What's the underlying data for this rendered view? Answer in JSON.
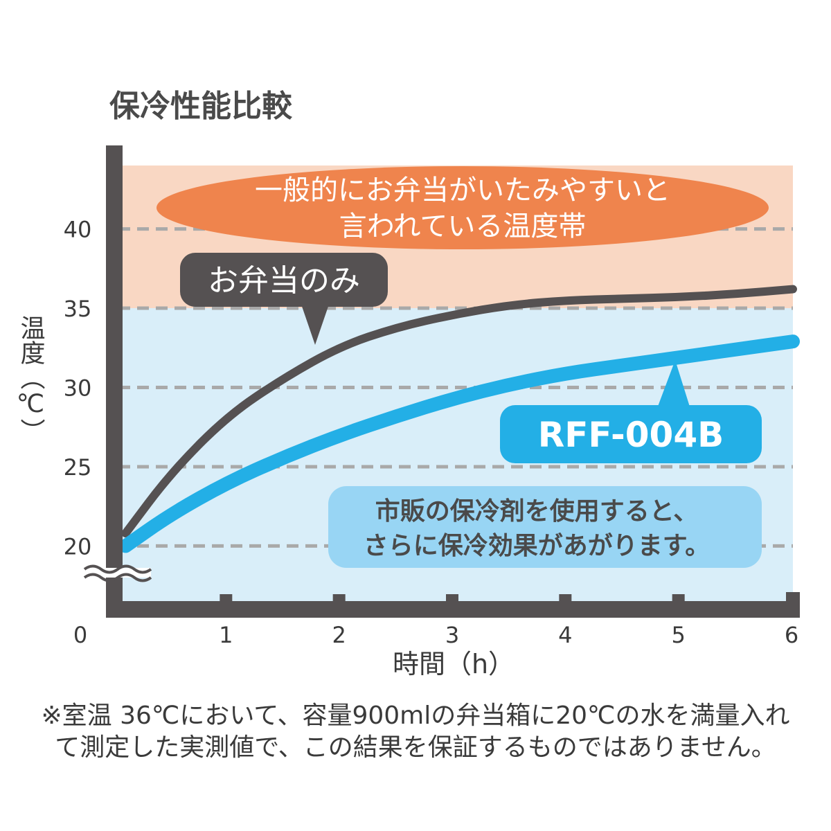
{
  "chart_data": {
    "type": "line",
    "title": "保冷性能比較",
    "xlabel": "時間（h）",
    "ylabel": "温度（℃）",
    "x_origin_label": "0",
    "xlim": [
      0,
      6
    ],
    "ylim": [
      16,
      44
    ],
    "x_ticks": [
      "1",
      "2",
      "3",
      "4",
      "5",
      "6"
    ],
    "y_ticks": [
      "20",
      "25",
      "30",
      "35",
      "40"
    ],
    "grid": "horizontal dashed",
    "bands": [
      {
        "from": 35,
        "to": 44,
        "color": "#f9d7c3"
      },
      {
        "from": 16,
        "to": 35,
        "color": "#d9eef9"
      }
    ],
    "series": [
      {
        "name": "お弁当のみ",
        "color": "#555152",
        "x": [
          0.1,
          0.5,
          1.0,
          1.5,
          2.0,
          2.5,
          3.0,
          3.5,
          4.0,
          4.5,
          5.0,
          5.5,
          6.0
        ],
        "y": [
          20.8,
          24.6,
          28.2,
          30.6,
          32.6,
          33.8,
          34.6,
          35.2,
          35.5,
          35.6,
          35.7,
          35.9,
          36.2
        ]
      },
      {
        "name": "RFF-004B",
        "color": "#23afe6",
        "x": [
          0.1,
          0.5,
          1.0,
          1.5,
          2.0,
          2.5,
          3.0,
          3.5,
          4.0,
          4.5,
          5.0,
          5.5,
          6.0
        ],
        "y": [
          20.0,
          22.0,
          24.0,
          25.6,
          27.0,
          28.2,
          29.3,
          30.2,
          30.9,
          31.4,
          31.9,
          32.4,
          32.9
        ]
      }
    ],
    "annotations": {
      "danger_zone_line1": "一般的にお弁当がいたみやすいと",
      "danger_zone_line2": "言われている温度帯",
      "ice_pack_line1": "市販の保冷剤を使用すると、",
      "ice_pack_line2": "さらに保冷効果があがります。"
    }
  },
  "footnote": {
    "line1": "※室温 36℃において、容量900mlの弁当箱に20℃の水を満量入れ",
    "line2": "て測定した実測値で、この結果を保証するものではありません。"
  },
  "colors": {
    "axis": "#555152",
    "grid": "#a9a9a9",
    "danger_bubble": "#ef844d",
    "info_bubble": "#98d5f4",
    "text": "#4a4a4a"
  }
}
